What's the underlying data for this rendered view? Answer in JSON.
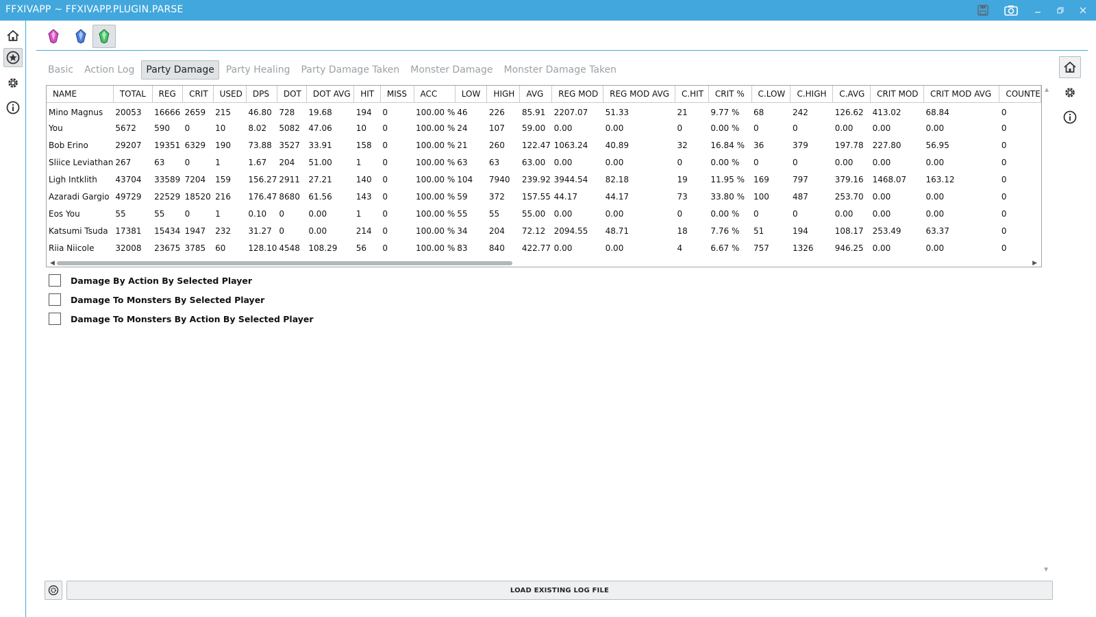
{
  "app": {
    "title": "FFXIVAPP ~ FFXIVAPP.PLUGIN.PARSE",
    "titlebar_color": "#42a7dd",
    "window_buttons": [
      "save-icon",
      "camera-icon",
      "minimize-icon",
      "restore-icon",
      "close-icon"
    ]
  },
  "left_nav": {
    "items": [
      {
        "icon": "home-icon",
        "active": false
      },
      {
        "icon": "star-icon",
        "active": true
      },
      {
        "icon": "gear-icon",
        "active": false
      },
      {
        "icon": "info-icon",
        "active": false
      }
    ]
  },
  "plugins": [
    {
      "icon": "pink-crystal-icon",
      "color": "#d64fc1",
      "active": false
    },
    {
      "icon": "blue-crystal-icon",
      "color": "#4a7ee0",
      "active": false
    },
    {
      "icon": "green-crystal-icon",
      "color": "#47c46a",
      "active": true
    }
  ],
  "tabs": [
    {
      "label": "Basic",
      "active": false
    },
    {
      "label": "Action Log",
      "active": false
    },
    {
      "label": "Party Damage",
      "active": true
    },
    {
      "label": "Party Healing",
      "active": false
    },
    {
      "label": "Party Damage Taken",
      "active": false
    },
    {
      "label": "Monster Damage",
      "active": false
    },
    {
      "label": "Monster Damage Taken",
      "active": false
    }
  ],
  "table": {
    "columns": [
      "NAME",
      "TOTAL",
      "REG",
      "CRIT",
      "USED",
      "DPS",
      "DOT",
      "DOT AVG",
      "HIT",
      "MISS",
      "ACC",
      "LOW",
      "HIGH",
      "AVG",
      "REG MOD",
      "REG MOD AVG",
      "C.HIT",
      "CRIT %",
      "C.LOW",
      "C.HIGH",
      "C.AVG",
      "CRIT MOD",
      "CRIT MOD AVG",
      "COUNTE"
    ],
    "rows": [
      [
        "Mino Magnus",
        "20053",
        "16666",
        "2659",
        "215",
        "46.80",
        "728",
        "19.68",
        "194",
        "0",
        "100.00 %",
        "46",
        "226",
        "85.91",
        "2207.07",
        "51.33",
        "21",
        "9.77 %",
        "68",
        "242",
        "126.62",
        "413.02",
        "68.84",
        "0"
      ],
      [
        "You",
        "5672",
        "590",
        "0",
        "10",
        "8.02",
        "5082",
        "47.06",
        "10",
        "0",
        "100.00 %",
        "24",
        "107",
        "59.00",
        "0.00",
        "0.00",
        "0",
        "0.00 %",
        "0",
        "0",
        "0.00",
        "0.00",
        "0.00",
        "0"
      ],
      [
        "Bob Erino",
        "29207",
        "19351",
        "6329",
        "190",
        "73.88",
        "3527",
        "33.91",
        "158",
        "0",
        "100.00 %",
        "21",
        "260",
        "122.47",
        "1063.24",
        "40.89",
        "32",
        "16.84 %",
        "36",
        "379",
        "197.78",
        "227.80",
        "56.95",
        "0"
      ],
      [
        "Sliice Leviathan",
        "267",
        "63",
        "0",
        "1",
        "1.67",
        "204",
        "51.00",
        "1",
        "0",
        "100.00 %",
        "63",
        "63",
        "63.00",
        "0.00",
        "0.00",
        "0",
        "0.00 %",
        "0",
        "0",
        "0.00",
        "0.00",
        "0.00",
        "0"
      ],
      [
        "Ligh Intklith",
        "43704",
        "33589",
        "7204",
        "159",
        "156.27",
        "2911",
        "27.21",
        "140",
        "0",
        "100.00 %",
        "104",
        "7940",
        "239.92",
        "3944.54",
        "82.18",
        "19",
        "11.95 %",
        "169",
        "797",
        "379.16",
        "1468.07",
        "163.12",
        "0"
      ],
      [
        "Azaradi Gargio",
        "49729",
        "22529",
        "18520",
        "216",
        "176.47",
        "8680",
        "61.56",
        "143",
        "0",
        "100.00 %",
        "59",
        "372",
        "157.55",
        "44.17",
        "44.17",
        "73",
        "33.80 %",
        "100",
        "487",
        "253.70",
        "0.00",
        "0.00",
        "0"
      ],
      [
        "Eos You",
        "55",
        "55",
        "0",
        "1",
        "0.10",
        "0",
        "0.00",
        "1",
        "0",
        "100.00 %",
        "55",
        "55",
        "55.00",
        "0.00",
        "0.00",
        "0",
        "0.00 %",
        "0",
        "0",
        "0.00",
        "0.00",
        "0.00",
        "0"
      ],
      [
        "Katsumi Tsuda",
        "17381",
        "15434",
        "1947",
        "232",
        "31.27",
        "0",
        "0.00",
        "214",
        "0",
        "100.00 %",
        "34",
        "204",
        "72.12",
        "2094.55",
        "48.71",
        "18",
        "7.76 %",
        "51",
        "194",
        "108.17",
        "253.49",
        "63.37",
        "0"
      ],
      [
        "Riia Niicole",
        "32008",
        "23675",
        "3785",
        "60",
        "128.10",
        "4548",
        "108.29",
        "56",
        "0",
        "100.00 %",
        "83",
        "840",
        "422.77",
        "0.00",
        "0.00",
        "4",
        "6.67 %",
        "757",
        "1326",
        "946.25",
        "0.00",
        "0.00",
        "0"
      ]
    ]
  },
  "checkboxes": [
    {
      "label": "Damage By Action By Selected Player",
      "checked": false
    },
    {
      "label": "Damage To Monsters By Selected Player",
      "checked": false
    },
    {
      "label": "Damage To Monsters By Action By Selected Player",
      "checked": false
    }
  ],
  "bottom": {
    "load_label": "LOAD EXISTING LOG FILE",
    "left_icon": "settings-round-icon"
  }
}
